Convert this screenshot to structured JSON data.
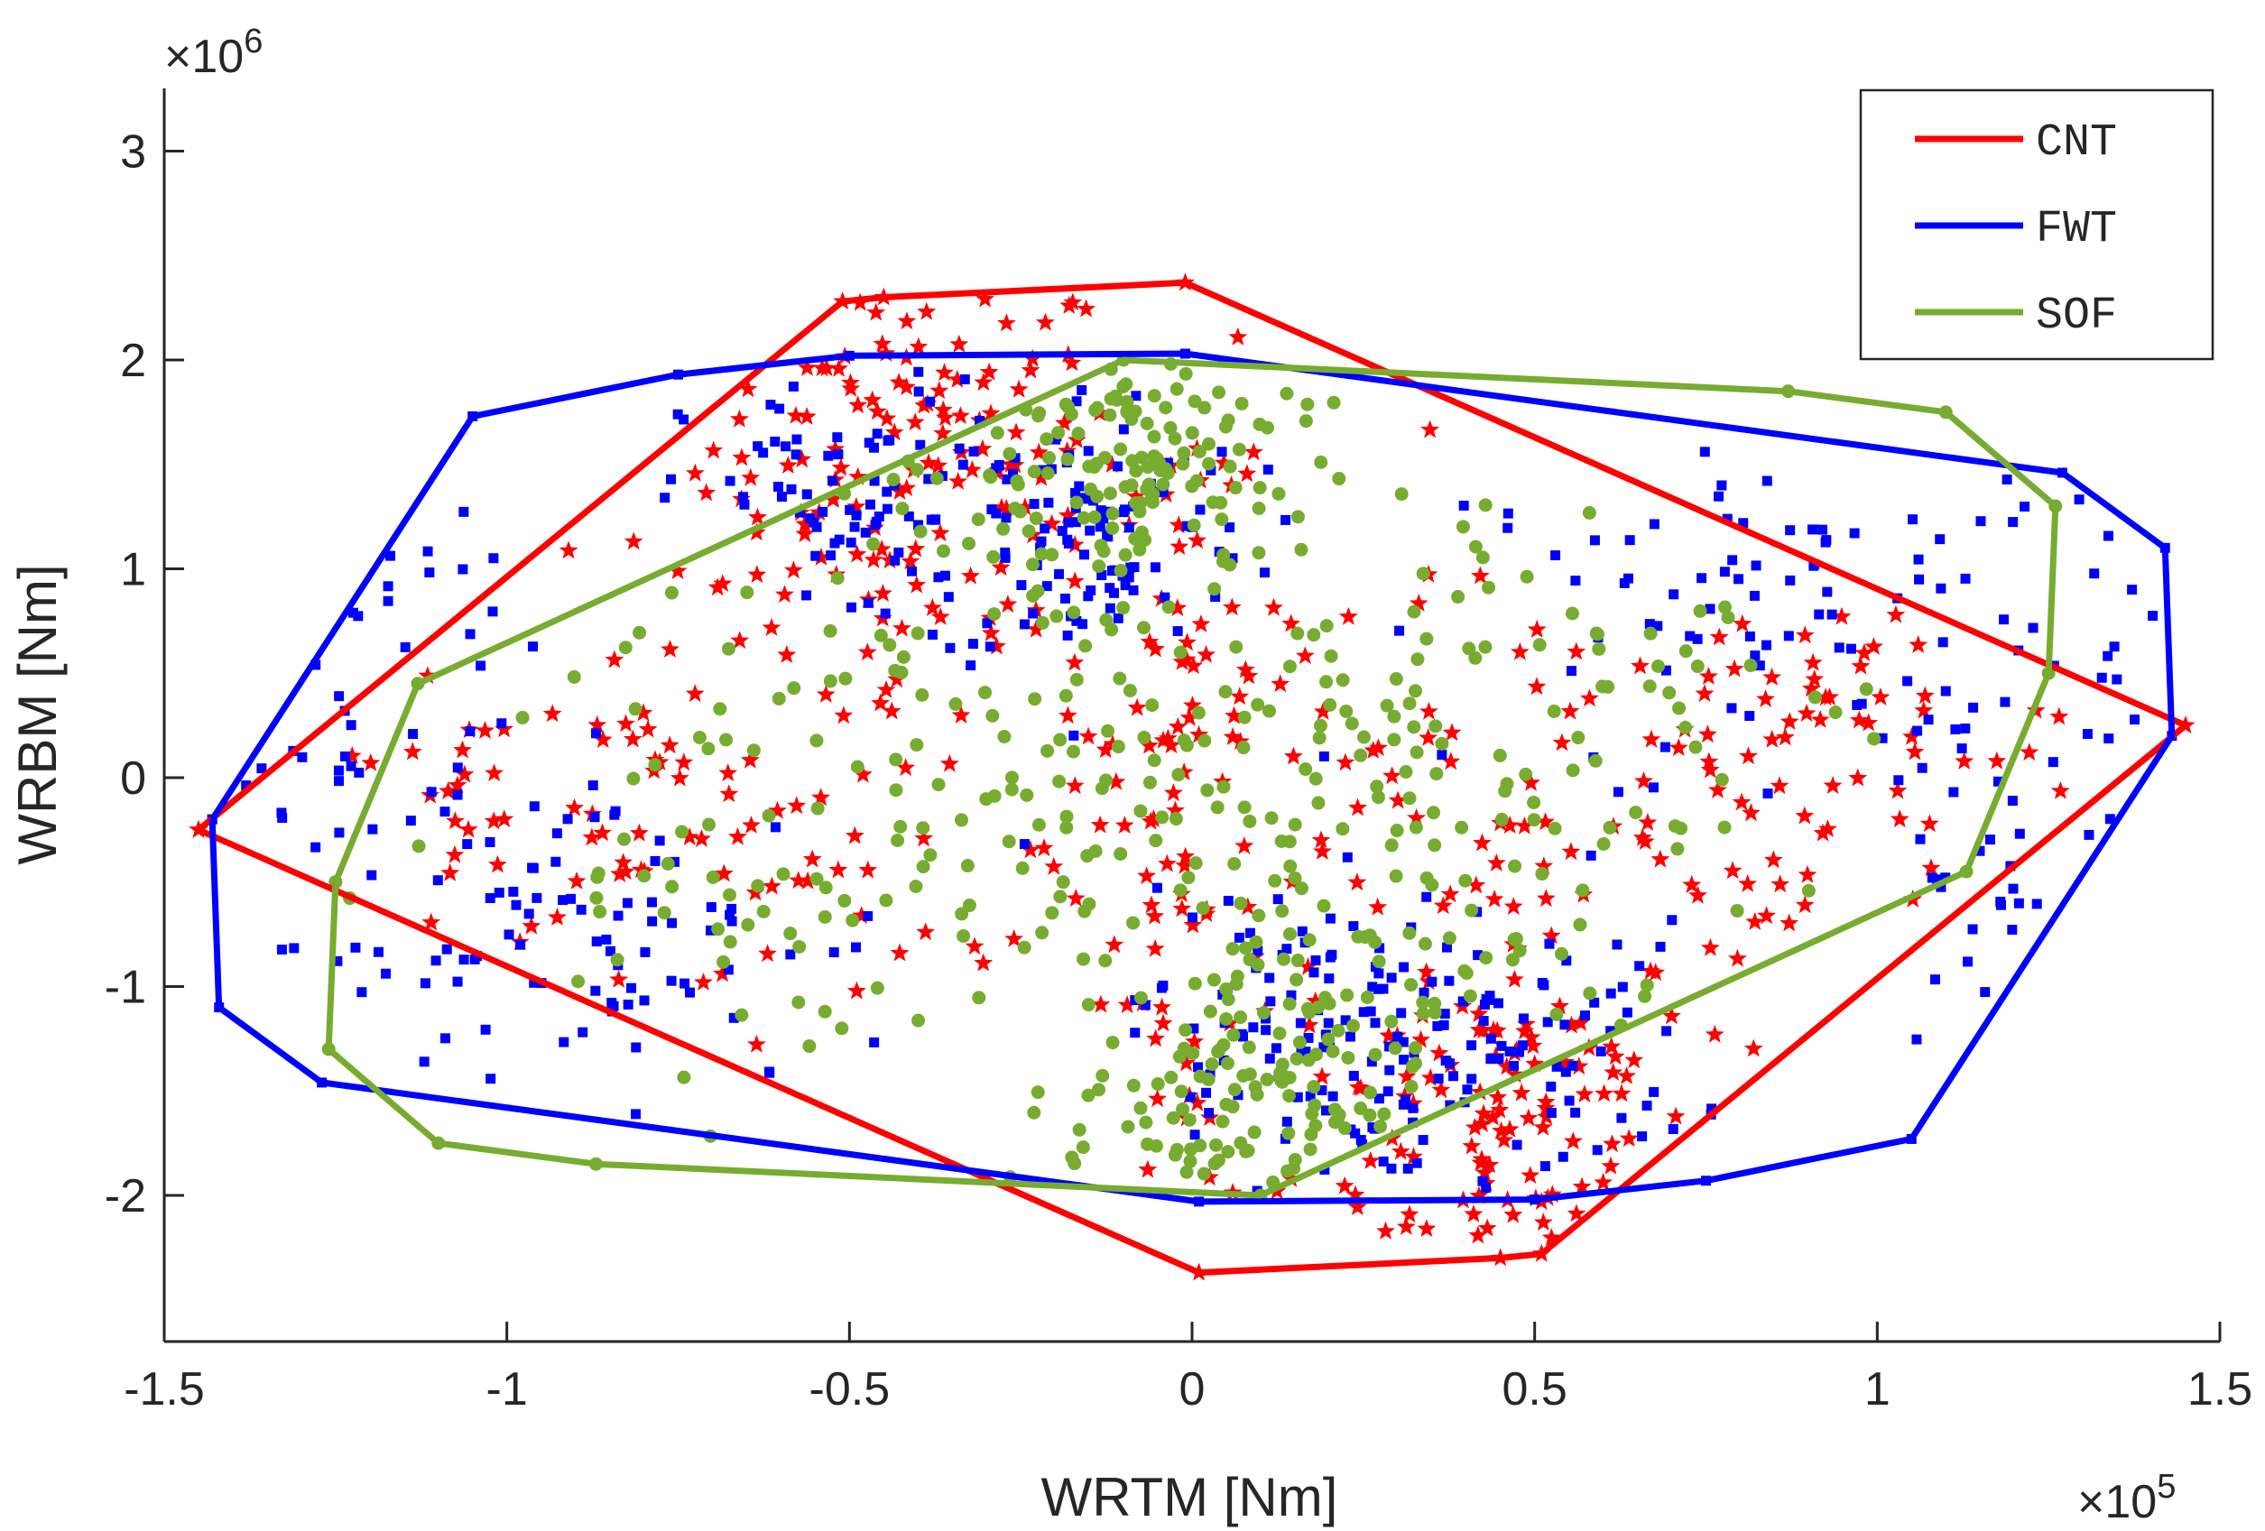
{
  "chart_data": {
    "type": "scatter",
    "xlabel": "WRTM [Nm]",
    "ylabel": "WRBM [Nm]",
    "x_exponent_label": "×10",
    "x_exponent": "5",
    "y_exponent_label": "×10",
    "y_exponent": "6",
    "xlim": [
      -1.5,
      1.5
    ],
    "ylim": [
      -2.7,
      3.3
    ],
    "x_ticks": [
      -1.5,
      -1,
      -0.5,
      0,
      0.5,
      1,
      1.5
    ],
    "x_tick_labels": [
      "-1.5",
      "-1",
      "-0.5",
      "0",
      "0.5",
      "1",
      "1.5"
    ],
    "y_ticks": [
      -2,
      -1,
      0,
      1,
      2,
      3
    ],
    "y_tick_labels": [
      "-2",
      "-1",
      "0",
      "1",
      "2",
      "3"
    ],
    "grid": false,
    "legend_position": "top-right",
    "series": [
      {
        "name": "CNT",
        "color": "#ff0000",
        "marker": "star",
        "hull": [
          [
            -1.45,
            -0.25
          ],
          [
            -0.51,
            2.28
          ],
          [
            -0.45,
            2.3
          ],
          [
            -0.01,
            2.37
          ],
          [
            1.45,
            0.25
          ],
          [
            0.51,
            -2.28
          ],
          [
            0.45,
            -2.3
          ],
          [
            0.01,
            -2.37
          ],
          [
            -1.45,
            -0.25
          ]
        ],
        "clusters": [
          {
            "cx": -0.4,
            "cy": 1.6,
            "sx": 0.15,
            "sy": 0.45,
            "n": 110
          },
          {
            "cx": 0.45,
            "cy": -1.6,
            "sx": 0.15,
            "sy": 0.45,
            "n": 110
          },
          {
            "cx": -0.5,
            "cy": 0.3,
            "sx": 0.35,
            "sy": 0.6,
            "n": 90
          },
          {
            "cx": 0.5,
            "cy": -0.3,
            "sx": 0.35,
            "sy": 0.6,
            "n": 90
          },
          {
            "cx": 0.0,
            "cy": 0.0,
            "sx": 0.06,
            "sy": 1.1,
            "n": 70
          },
          {
            "cx": -0.9,
            "cy": -0.3,
            "sx": 0.25,
            "sy": 0.35,
            "n": 50
          },
          {
            "cx": 0.9,
            "cy": 0.2,
            "sx": 0.25,
            "sy": 0.35,
            "n": 50
          }
        ]
      },
      {
        "name": "FWT",
        "color": "#0000ff",
        "marker": "square",
        "hull": [
          [
            -1.43,
            -0.2
          ],
          [
            -1.05,
            1.73
          ],
          [
            -0.75,
            1.93
          ],
          [
            -0.5,
            2.02
          ],
          [
            -0.01,
            2.03
          ],
          [
            1.27,
            1.46
          ],
          [
            1.42,
            1.1
          ],
          [
            1.43,
            0.2
          ],
          [
            1.05,
            -1.73
          ],
          [
            0.75,
            -1.93
          ],
          [
            0.5,
            -2.02
          ],
          [
            0.01,
            -2.03
          ],
          [
            -1.27,
            -1.46
          ],
          [
            -1.42,
            -1.1
          ],
          [
            -1.43,
            -0.2
          ]
        ],
        "clusters": [
          {
            "cx": -0.15,
            "cy": 1.2,
            "sx": 0.12,
            "sy": 0.35,
            "n": 110
          },
          {
            "cx": 0.15,
            "cy": -1.2,
            "sx": 0.12,
            "sy": 0.35,
            "n": 110
          },
          {
            "cx": -0.5,
            "cy": 1.3,
            "sx": 0.12,
            "sy": 0.3,
            "n": 70
          },
          {
            "cx": 0.5,
            "cy": -1.3,
            "sx": 0.12,
            "sy": 0.3,
            "n": 70
          },
          {
            "cx": -0.9,
            "cy": -0.8,
            "sx": 0.25,
            "sy": 0.4,
            "n": 90
          },
          {
            "cx": 0.9,
            "cy": 0.8,
            "sx": 0.25,
            "sy": 0.4,
            "n": 90
          },
          {
            "cx": -1.2,
            "cy": 0.4,
            "sx": 0.12,
            "sy": 0.6,
            "n": 40
          },
          {
            "cx": 1.2,
            "cy": -0.4,
            "sx": 0.12,
            "sy": 0.6,
            "n": 40
          }
        ]
      },
      {
        "name": "SOF",
        "color": "#77ac30",
        "marker": "circle",
        "hull": [
          [
            -1.25,
            -0.5
          ],
          [
            -1.13,
            0.45
          ],
          [
            -0.1,
            2.0
          ],
          [
            0.87,
            1.85
          ],
          [
            1.1,
            1.75
          ],
          [
            1.26,
            1.3
          ],
          [
            1.25,
            0.5
          ],
          [
            1.13,
            -0.45
          ],
          [
            0.1,
            -2.0
          ],
          [
            -0.87,
            -1.85
          ],
          [
            -1.1,
            -1.75
          ],
          [
            -1.26,
            -1.3
          ],
          [
            -1.25,
            -0.5
          ]
        ],
        "clusters": [
          {
            "cx": -0.08,
            "cy": 1.5,
            "sx": 0.13,
            "sy": 0.35,
            "n": 130
          },
          {
            "cx": 0.08,
            "cy": -1.5,
            "sx": 0.13,
            "sy": 0.35,
            "n": 130
          },
          {
            "cx": -0.3,
            "cy": 0.4,
            "sx": 0.28,
            "sy": 0.65,
            "n": 110
          },
          {
            "cx": 0.3,
            "cy": -0.4,
            "sx": 0.28,
            "sy": 0.65,
            "n": 110
          },
          {
            "cx": 0.55,
            "cy": 0.5,
            "sx": 0.25,
            "sy": 0.45,
            "n": 60
          },
          {
            "cx": -0.55,
            "cy": -0.5,
            "sx": 0.25,
            "sy": 0.45,
            "n": 60
          }
        ]
      }
    ]
  }
}
